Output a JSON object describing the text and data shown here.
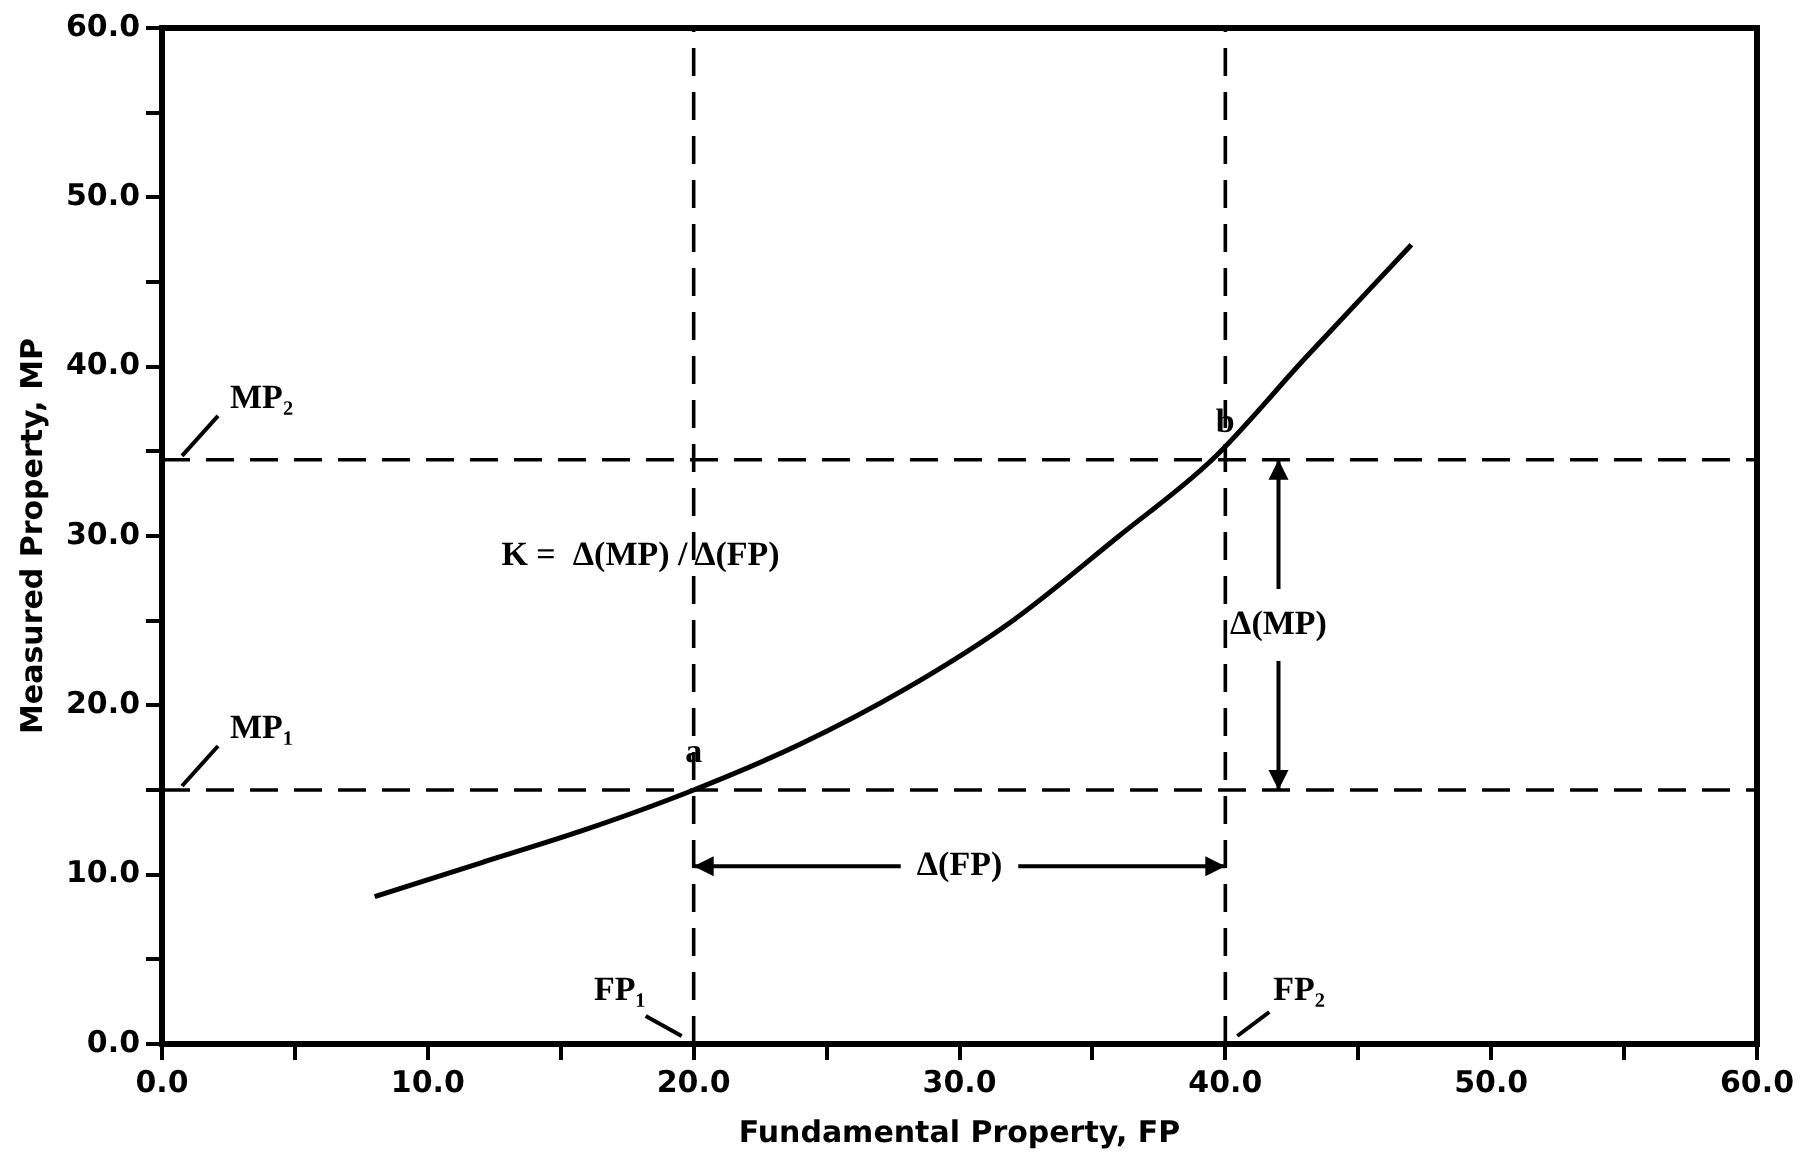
{
  "chart_data": {
    "type": "line",
    "xlabel": "Fundamental Property, FP",
    "ylabel": "Measured Property, MP",
    "x": [
      8,
      12,
      16,
      20,
      24,
      28,
      32,
      36,
      39.5,
      43,
      47
    ],
    "series": [
      {
        "color": "#000000",
        "values": [
          8.7,
          10.7,
          12.7,
          15.0,
          17.7,
          21.0,
          25.0,
          30.0,
          34.5,
          40.5,
          47.2
        ]
      }
    ],
    "xlim": [
      0,
      60
    ],
    "ylim": [
      0,
      60
    ],
    "xticks": [
      {
        "value": 0,
        "label": "0.0"
      },
      {
        "value": 5,
        "label": null
      },
      {
        "value": 10,
        "label": "10.0"
      },
      {
        "value": 15,
        "label": null
      },
      {
        "value": 20,
        "label": "20.0"
      },
      {
        "value": 25,
        "label": null
      },
      {
        "value": 30,
        "label": "30.0"
      },
      {
        "value": 35,
        "label": null
      },
      {
        "value": 40,
        "label": "40.0"
      },
      {
        "value": 45,
        "label": null
      },
      {
        "value": 50,
        "label": "50.0"
      },
      {
        "value": 55,
        "label": null
      },
      {
        "value": 60,
        "label": "60.0"
      }
    ],
    "yticks": [
      {
        "value": 0,
        "label": "0.0"
      },
      {
        "value": 5,
        "label": null
      },
      {
        "value": 10,
        "label": "10.0"
      },
      {
        "value": 15,
        "label": null
      },
      {
        "value": 20,
        "label": "20.0"
      },
      {
        "value": 25,
        "label": null
      },
      {
        "value": 30,
        "label": "30.0"
      },
      {
        "value": 35,
        "label": null
      },
      {
        "value": 40,
        "label": "40.0"
      },
      {
        "value": 45,
        "label": null
      },
      {
        "value": 50,
        "label": "50.0"
      },
      {
        "value": 55,
        "label": null
      },
      {
        "value": 60,
        "label": "60.0"
      }
    ],
    "ref_lines": [
      {
        "axis": "y",
        "value": 15,
        "label": "MP₁",
        "line_style": "dashed"
      },
      {
        "axis": "y",
        "value": 34.5,
        "label": "MP₂",
        "line_style": "dashed"
      },
      {
        "axis": "x",
        "value": 20,
        "label": "FP₁",
        "line_style": "dashed"
      },
      {
        "axis": "x",
        "value": 40,
        "label": "FP₂",
        "line_style": "dashed"
      }
    ],
    "annotations": [
      {
        "text": "a",
        "x": 20,
        "y": 15
      },
      {
        "text": "b",
        "x": 40,
        "y": 34.5
      },
      "K =  Δ(MP) / Δ(FP)",
      {
        "text": "Δ(FP)",
        "x": 40,
        "y": 10.5
      },
      {
        "text": "Δ(MP)",
        "x": 42,
        "y": 34.5
      }
    ],
    "grid": false,
    "legend": false,
    "marker": "none",
    "line_style": "solid"
  }
}
